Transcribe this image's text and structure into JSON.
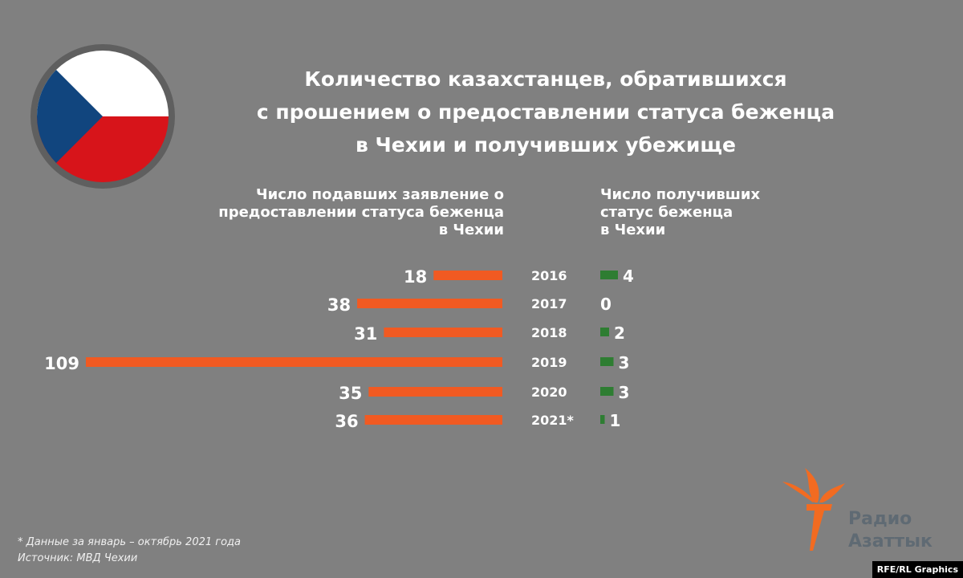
{
  "title_lines": [
    "Количество казахстанцев, обратившихся",
    "с прошением о предоставлении статуса беженца",
    "в Чехии и получивших убежище"
  ],
  "chart_data": {
    "type": "bar",
    "title": "Количество казахстанцев, обратившихся с прошением о предоставлении статуса беженца в Чехии и получивших убежище",
    "categories": [
      "2016",
      "2017",
      "2018",
      "2019",
      "2020",
      "2021*"
    ],
    "series": [
      {
        "name": "Число подавших заявление о предоставлении статуса беженца в Чехии",
        "values": [
          18,
          38,
          31,
          109,
          35,
          36
        ],
        "color": "#f15a22"
      },
      {
        "name": "Число получивших статус беженца в Чехии",
        "values": [
          4,
          0,
          2,
          3,
          3,
          1
        ],
        "color": "#2e7d32"
      }
    ]
  },
  "left_header_lines": [
    "Число подавших заявление о",
    "предоставлении статуса беженца",
    "в Чехии"
  ],
  "right_header_lines": [
    "Число получивших",
    "статус беженца",
    "в Чехии"
  ],
  "flag": {
    "white": "#ffffff",
    "red": "#d7141a",
    "blue": "#11457e"
  },
  "footnote": "* Данные за январь – октябрь 2021 года",
  "source": "Источник: МВД Чехии",
  "logo": {
    "line1": "Радио",
    "line2": "Азаттык",
    "color": "#f26b21"
  },
  "credit": "RFE/RL Graphics"
}
